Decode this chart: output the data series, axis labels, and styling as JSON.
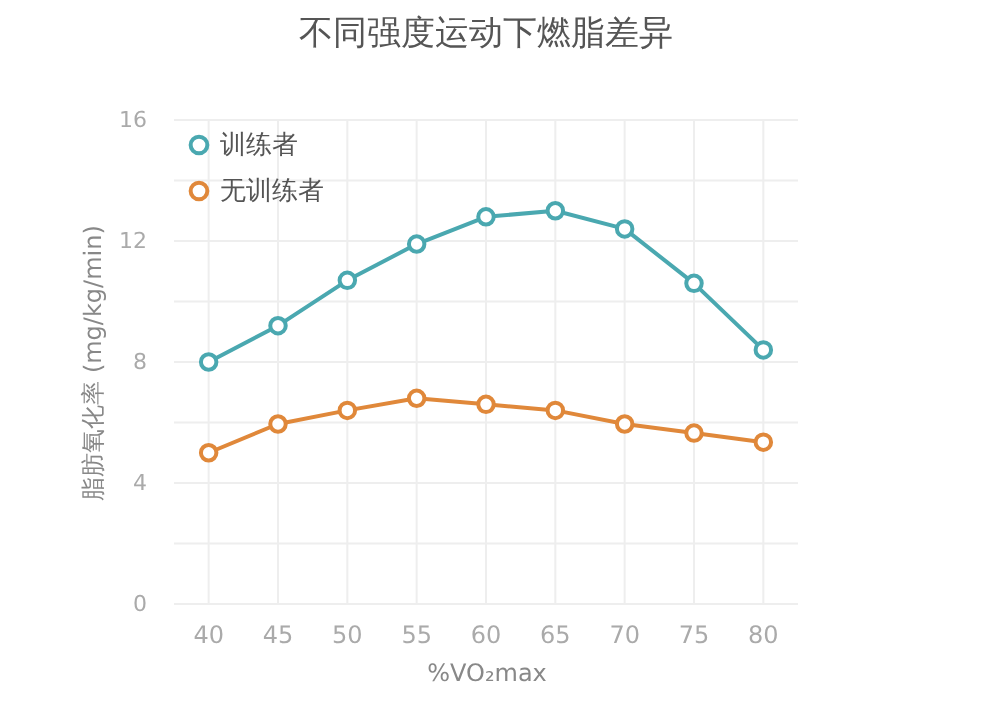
{
  "chart_data": {
    "type": "line",
    "title": "不同强度运动下燃脂差异",
    "xlabel": "%VO₂max",
    "ylabel": "脂肪氧化率 (mg/kg/min)",
    "categories": [
      "40",
      "45",
      "50",
      "55",
      "60",
      "65",
      "70",
      "75",
      "80"
    ],
    "series": [
      {
        "name": "训练者",
        "color": "#4aa8b0",
        "values": [
          8.0,
          9.2,
          10.7,
          11.9,
          12.8,
          13.0,
          12.4,
          10.6,
          8.4
        ]
      },
      {
        "name": "无训练者",
        "color": "#e0883a",
        "values": [
          5.0,
          5.95,
          6.4,
          6.8,
          6.6,
          6.4,
          5.95,
          5.65,
          5.35
        ]
      }
    ],
    "ylim": [
      0,
      16
    ],
    "yticks": [
      0,
      {
        "value": 2,
        "label": null
      },
      4,
      {
        "value": 6,
        "label": null
      },
      8,
      {
        "value": 10,
        "label": null
      },
      12,
      {
        "value": 14,
        "label": null
      },
      16
    ],
    "grid": true,
    "legend": "top left",
    "marker": "circle",
    "line_style": "solid"
  }
}
